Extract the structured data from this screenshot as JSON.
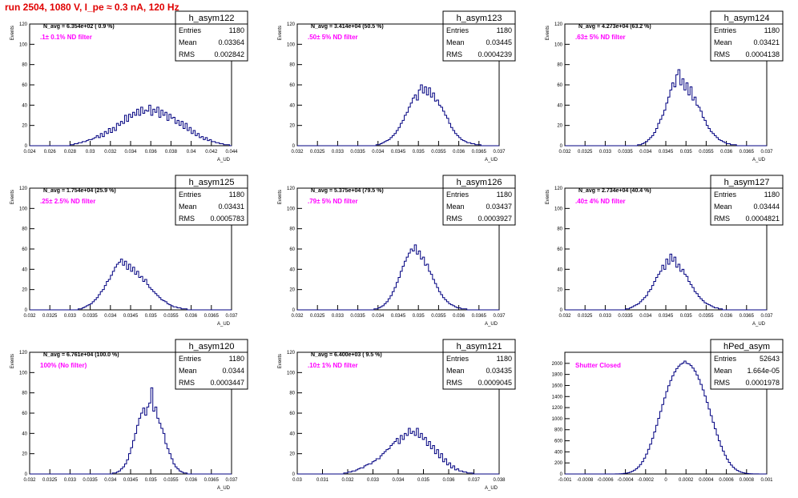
{
  "title": "run 2504,  1080 V, I_pe ≈ 0.3 nA, 120 Hz",
  "colors": {
    "title": "#e00000",
    "annotation": "#ff00ff",
    "histogram": "#000080",
    "text": "#000000"
  },
  "stats_labels": {
    "entries": "Entries",
    "mean": "Mean",
    "rms": "RMS"
  },
  "chart_data": [
    {
      "type": "histogram",
      "name": "h_asym122",
      "ylabel": "Events",
      "xlabel": "A_UD",
      "stats": {
        "entries": "1180",
        "mean": "0.03364",
        "rms": "0.002842"
      },
      "info": "N_avg = 6.354e+02 ( 0.9 %)",
      "annotation": ".1± 0.1% ND filter",
      "xlim": [
        0.024,
        0.044
      ],
      "xticks": [
        "0.024",
        "0.026",
        "0.028",
        "0.03",
        "0.032",
        "0.034",
        "0.036",
        "0.038",
        "0.04",
        "0.042",
        "0.044"
      ],
      "ylim": [
        0,
        120
      ],
      "yticks": [
        0,
        20,
        40,
        60,
        80,
        100,
        120
      ],
      "nbins": 100,
      "values": [
        0,
        0,
        0,
        0,
        0,
        0,
        0,
        0,
        0,
        0,
        0,
        0,
        0,
        0,
        0,
        0,
        0,
        0,
        0,
        0,
        1,
        1,
        2,
        2,
        3,
        3,
        4,
        4,
        5,
        6,
        6,
        7,
        8,
        10,
        8,
        12,
        9,
        14,
        12,
        17,
        13,
        18,
        15,
        22,
        20,
        24,
        22,
        30,
        24,
        31,
        28,
        33,
        30,
        36,
        30,
        38,
        32,
        35,
        34,
        40,
        30,
        36,
        33,
        38,
        28,
        35,
        30,
        33,
        25,
        31,
        27,
        28,
        22,
        25,
        20,
        24,
        17,
        22,
        15,
        18,
        12,
        15,
        10,
        12,
        8,
        9,
        6,
        8,
        5,
        6,
        4,
        4,
        3,
        3,
        2,
        2,
        1,
        1,
        1,
        0
      ]
    },
    {
      "type": "histogram",
      "name": "h_asym123",
      "ylabel": "Events",
      "xlabel": "A_UD",
      "stats": {
        "entries": "1180",
        "mean": "0.03445",
        "rms": "0.0004239"
      },
      "info": "N_avg = 3.414e+04 (50.5 %)",
      "annotation": ".50± 5% ND filter",
      "xlim": [
        0.032,
        0.037
      ],
      "xticks": [
        "0.032",
        "0.0325",
        "0.033",
        "0.0335",
        "0.034",
        "0.0345",
        "0.035",
        "0.0355",
        "0.036",
        "0.0365",
        "0.037"
      ],
      "ylim": [
        0,
        120
      ],
      "yticks": [
        0,
        20,
        40,
        60,
        80,
        100,
        120
      ],
      "nbins": 100,
      "values": [
        0,
        0,
        0,
        0,
        0,
        0,
        0,
        0,
        0,
        0,
        0,
        0,
        0,
        0,
        0,
        0,
        0,
        0,
        0,
        0,
        0,
        0,
        0,
        0,
        0,
        0,
        0,
        0,
        0,
        0,
        0,
        0,
        0,
        0,
        0,
        0,
        0,
        0,
        0,
        1,
        1,
        2,
        3,
        4,
        5,
        6,
        8,
        10,
        12,
        15,
        18,
        22,
        25,
        30,
        33,
        38,
        42,
        47,
        50,
        45,
        55,
        60,
        52,
        58,
        50,
        57,
        48,
        52,
        44,
        45,
        40,
        38,
        34,
        30,
        27,
        22,
        18,
        15,
        12,
        10,
        8,
        6,
        5,
        4,
        3,
        3,
        2,
        2,
        1,
        1,
        1,
        0,
        0,
        0,
        0,
        0,
        0,
        0,
        0,
        0
      ]
    },
    {
      "type": "histogram",
      "name": "h_asym124",
      "ylabel": "Events",
      "xlabel": "A_UD",
      "stats": {
        "entries": "1180",
        "mean": "0.03421",
        "rms": "0.0004138"
      },
      "info": "N_avg = 4.273e+04 (63.2 %)",
      "annotation": ".63± 5% ND filter",
      "xlim": [
        0.032,
        0.037
      ],
      "xticks": [
        "0.032",
        "0.0325",
        "0.033",
        "0.0335",
        "0.034",
        "0.0345",
        "0.035",
        "0.0355",
        "0.036",
        "0.0365",
        "0.037"
      ],
      "ylim": [
        0,
        120
      ],
      "yticks": [
        0,
        20,
        40,
        60,
        80,
        100,
        120
      ],
      "nbins": 100,
      "values": [
        0,
        0,
        0,
        0,
        0,
        0,
        0,
        0,
        0,
        0,
        0,
        0,
        0,
        0,
        0,
        0,
        0,
        0,
        0,
        0,
        0,
        0,
        0,
        0,
        0,
        0,
        0,
        0,
        0,
        0,
        0,
        0,
        0,
        0,
        0,
        0,
        1,
        1,
        2,
        3,
        4,
        6,
        8,
        10,
        13,
        17,
        22,
        26,
        30,
        35,
        42,
        48,
        55,
        62,
        58,
        70,
        75,
        60,
        66,
        55,
        62,
        50,
        58,
        45,
        48,
        40,
        38,
        34,
        28,
        25,
        20,
        17,
        14,
        12,
        10,
        8,
        6,
        5,
        4,
        3,
        2,
        2,
        1,
        1,
        1,
        0,
        0,
        0,
        0,
        0,
        0,
        0,
        0,
        0,
        0,
        0,
        0,
        0,
        0,
        0
      ]
    },
    {
      "type": "histogram",
      "name": "h_asym125",
      "ylabel": "Events",
      "xlabel": "A_UD",
      "stats": {
        "entries": "1180",
        "mean": "0.03431",
        "rms": "0.0005783"
      },
      "info": "N_avg = 1.754e+04 (25.9 %)",
      "annotation": ".25± 2.5% ND filter",
      "xlim": [
        0.032,
        0.037
      ],
      "xticks": [
        "0.032",
        "0.0325",
        "0.033",
        "0.0335",
        "0.034",
        "0.0345",
        "0.035",
        "0.0355",
        "0.036",
        "0.0365",
        "0.037"
      ],
      "ylim": [
        0,
        120
      ],
      "yticks": [
        0,
        20,
        40,
        60,
        80,
        100,
        120
      ],
      "nbins": 100,
      "values": [
        0,
        0,
        0,
        0,
        0,
        0,
        0,
        0,
        0,
        0,
        0,
        0,
        0,
        0,
        0,
        0,
        0,
        0,
        0,
        0,
        0,
        0,
        0,
        0,
        1,
        1,
        2,
        3,
        4,
        5,
        6,
        8,
        10,
        12,
        15,
        18,
        20,
        24,
        28,
        30,
        34,
        38,
        42,
        45,
        47,
        50,
        44,
        48,
        40,
        45,
        38,
        42,
        35,
        38,
        32,
        33,
        28,
        30,
        25,
        22,
        20,
        18,
        16,
        14,
        12,
        10,
        9,
        8,
        6,
        5,
        4,
        3,
        3,
        2,
        2,
        1,
        1,
        1,
        0,
        0,
        0,
        0,
        0,
        0,
        0,
        0,
        0,
        0,
        0,
        0,
        0,
        0,
        0,
        0,
        0,
        0,
        0,
        0,
        0,
        0
      ]
    },
    {
      "type": "histogram",
      "name": "h_asym126",
      "ylabel": "Events",
      "xlabel": "A_UD",
      "stats": {
        "entries": "1180",
        "mean": "0.03437",
        "rms": "0.0003927"
      },
      "info": "N_avg = 5.375e+04 (79.5 %)",
      "annotation": ".79± 5% ND filter",
      "xlim": [
        0.032,
        0.037
      ],
      "xticks": [
        "0.032",
        "0.0325",
        "0.033",
        "0.0335",
        "0.034",
        "0.0345",
        "0.035",
        "0.0355",
        "0.036",
        "0.0365",
        "0.037"
      ],
      "ylim": [
        0,
        120
      ],
      "yticks": [
        0,
        20,
        40,
        60,
        80,
        100,
        120
      ],
      "nbins": 100,
      "values": [
        0,
        0,
        0,
        0,
        0,
        0,
        0,
        0,
        0,
        0,
        0,
        0,
        0,
        0,
        0,
        0,
        0,
        0,
        0,
        0,
        0,
        0,
        0,
        0,
        0,
        0,
        0,
        0,
        0,
        0,
        0,
        0,
        0,
        0,
        0,
        0,
        0,
        0,
        1,
        1,
        2,
        3,
        4,
        6,
        8,
        11,
        14,
        18,
        22,
        27,
        32,
        38,
        43,
        48,
        52,
        56,
        60,
        58,
        64,
        55,
        58,
        50,
        52,
        44,
        45,
        38,
        35,
        30,
        26,
        22,
        18,
        15,
        12,
        10,
        8,
        6,
        5,
        4,
        3,
        2,
        2,
        1,
        1,
        1,
        0,
        0,
        0,
        0,
        0,
        0,
        0,
        0,
        0,
        0,
        0,
        0,
        0,
        0,
        0,
        0
      ]
    },
    {
      "type": "histogram",
      "name": "h_asym127",
      "ylabel": "Events",
      "xlabel": "A_UD",
      "stats": {
        "entries": "1180",
        "mean": "0.03444",
        "rms": "0.0004821"
      },
      "info": "N_avg = 2.734e+04 (40.4 %)",
      "annotation": ".40± 4% ND filter",
      "xlim": [
        0.032,
        0.037
      ],
      "xticks": [
        "0.032",
        "0.0325",
        "0.033",
        "0.0335",
        "0.034",
        "0.0345",
        "0.035",
        "0.0355",
        "0.036",
        "0.0365",
        "0.037"
      ],
      "ylim": [
        0,
        120
      ],
      "yticks": [
        0,
        20,
        40,
        60,
        80,
        100,
        120
      ],
      "nbins": 100,
      "values": [
        0,
        0,
        0,
        0,
        0,
        0,
        0,
        0,
        0,
        0,
        0,
        0,
        0,
        0,
        0,
        0,
        0,
        0,
        0,
        0,
        0,
        0,
        0,
        0,
        0,
        0,
        0,
        0,
        0,
        0,
        1,
        1,
        2,
        3,
        4,
        5,
        6,
        8,
        10,
        12,
        14,
        18,
        20,
        24,
        28,
        32,
        35,
        38,
        44,
        40,
        50,
        45,
        55,
        48,
        52,
        42,
        45,
        38,
        40,
        35,
        33,
        28,
        25,
        22,
        18,
        16,
        13,
        11,
        9,
        7,
        6,
        5,
        4,
        3,
        2,
        2,
        1,
        1,
        0,
        0,
        0,
        0,
        0,
        0,
        0,
        0,
        0,
        0,
        0,
        0,
        0,
        0,
        0,
        0,
        0,
        0,
        0,
        0,
        0,
        0
      ]
    },
    {
      "type": "histogram",
      "name": "h_asym120",
      "ylabel": "Events",
      "xlabel": "A_UD",
      "stats": {
        "entries": "1180",
        "mean": "0.0344",
        "rms": "0.0003447"
      },
      "info": "N_avg = 6.761e+04 (100.0 %)",
      "annotation": "100% (No filter)",
      "xlim": [
        0.032,
        0.037
      ],
      "xticks": [
        "0.032",
        "0.0325",
        "0.033",
        "0.0335",
        "0.034",
        "0.0345",
        "0.035",
        "0.0355",
        "0.036",
        "0.0365",
        "0.037"
      ],
      "ylim": [
        0,
        120
      ],
      "yticks": [
        0,
        20,
        40,
        60,
        80,
        100,
        120
      ],
      "nbins": 100,
      "values": [
        0,
        0,
        0,
        0,
        0,
        0,
        0,
        0,
        0,
        0,
        0,
        0,
        0,
        0,
        0,
        0,
        0,
        0,
        0,
        0,
        0,
        0,
        0,
        0,
        0,
        0,
        0,
        0,
        0,
        0,
        0,
        0,
        0,
        0,
        0,
        0,
        0,
        0,
        0,
        0,
        0,
        1,
        1,
        2,
        3,
        5,
        7,
        10,
        14,
        20,
        26,
        33,
        40,
        48,
        55,
        60,
        65,
        58,
        66,
        70,
        85,
        62,
        66,
        55,
        50,
        45,
        40,
        30,
        25,
        20,
        15,
        10,
        7,
        5,
        3,
        2,
        1,
        1,
        0,
        0,
        0,
        0,
        0,
        0,
        0,
        0,
        0,
        0,
        0,
        0,
        0,
        0,
        0,
        0,
        0,
        0,
        0,
        0,
        0,
        0
      ]
    },
    {
      "type": "histogram",
      "name": "h_asym121",
      "ylabel": "Events",
      "xlabel": "A_UD",
      "stats": {
        "entries": "1180",
        "mean": "0.03435",
        "rms": "0.0009045"
      },
      "info": "N_avg = 6.400e+03 ( 9.5 %)",
      "annotation": ".10± 1% ND filter",
      "xlim": [
        0.03,
        0.038
      ],
      "xticks": [
        "0.03",
        "0.031",
        "0.032",
        "0.033",
        "0.034",
        "0.035",
        "0.036",
        "0.037",
        "0.038"
      ],
      "ylim": [
        0,
        120
      ],
      "yticks": [
        0,
        20,
        40,
        60,
        80,
        100,
        120
      ],
      "nbins": 100,
      "values": [
        0,
        0,
        0,
        0,
        0,
        0,
        0,
        0,
        0,
        0,
        0,
        0,
        0,
        0,
        0,
        0,
        0,
        0,
        0,
        0,
        0,
        0,
        0,
        1,
        1,
        2,
        2,
        3,
        3,
        4,
        5,
        6,
        6,
        8,
        9,
        10,
        10,
        12,
        13,
        15,
        15,
        18,
        20,
        22,
        24,
        25,
        28,
        30,
        32,
        35,
        30,
        38,
        34,
        40,
        38,
        45,
        40,
        42,
        38,
        45,
        36,
        40,
        34,
        36,
        28,
        32,
        25,
        28,
        20,
        24,
        16,
        20,
        12,
        15,
        9,
        11,
        6,
        8,
        4,
        5,
        3,
        3,
        2,
        2,
        1,
        1,
        1,
        0,
        0,
        0,
        0,
        0,
        0,
        0,
        0,
        0,
        0,
        0,
        0,
        0
      ]
    },
    {
      "type": "histogram",
      "name": "hPed_asym",
      "ylabel": "",
      "xlabel": "",
      "stats": {
        "entries": "52643",
        "mean": "1.664e-05",
        "rms": "0.0001978"
      },
      "info": "",
      "annotation": "Shutter Closed",
      "xlim": [
        -0.001,
        0.001
      ],
      "xticks": [
        "-0.001",
        "-0.0008",
        "-0.0006",
        "-0.0004",
        "-0.0002",
        "0",
        "0.0002",
        "0.0004",
        "0.0006",
        "0.0008",
        "0.001"
      ],
      "ylim": [
        0,
        2200
      ],
      "yticks": [
        0,
        200,
        400,
        600,
        800,
        1000,
        1200,
        1400,
        1600,
        1800,
        2000
      ],
      "nbins": 100,
      "values": [
        0,
        0,
        0,
        0,
        0,
        0,
        0,
        0,
        0,
        0,
        0,
        0,
        0,
        0,
        0,
        0,
        0,
        0,
        0,
        0,
        0,
        0,
        0,
        0,
        0,
        1,
        2,
        4,
        6,
        10,
        15,
        22,
        33,
        48,
        68,
        95,
        128,
        170,
        222,
        285,
        360,
        445,
        540,
        646,
        760,
        880,
        1005,
        1130,
        1255,
        1375,
        1490,
        1595,
        1690,
        1775,
        1845,
        1905,
        1950,
        1985,
        2005,
        2040,
        2000,
        1990,
        1960,
        1915,
        1860,
        1790,
        1710,
        1620,
        1520,
        1410,
        1295,
        1175,
        1055,
        935,
        818,
        705,
        600,
        502,
        414,
        336,
        268,
        210,
        161,
        121,
        89,
        64,
        45,
        31,
        21,
        14,
        9,
        6,
        4,
        2,
        1,
        1,
        0,
        0,
        0,
        0
      ]
    }
  ]
}
